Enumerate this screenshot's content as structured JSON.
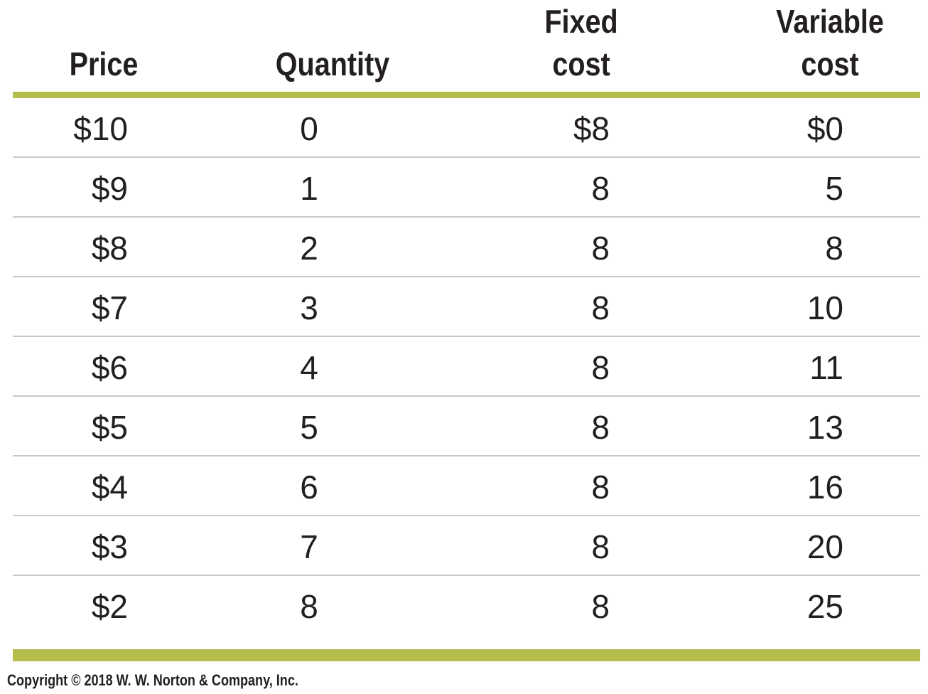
{
  "table": {
    "headers": {
      "price": [
        "Price"
      ],
      "quantity": [
        "Quantity"
      ],
      "fixed_cost": [
        "Fixed",
        "cost"
      ],
      "variable_cost": [
        "Variable",
        "cost"
      ]
    },
    "rows": [
      {
        "price": "$10",
        "quantity": "0",
        "fixed_cost": "$8",
        "variable_cost": "$0"
      },
      {
        "price": "$9",
        "quantity": "1",
        "fixed_cost": "8",
        "variable_cost": "5"
      },
      {
        "price": "$8",
        "quantity": "2",
        "fixed_cost": "8",
        "variable_cost": "8"
      },
      {
        "price": "$7",
        "quantity": "3",
        "fixed_cost": "8",
        "variable_cost": "10"
      },
      {
        "price": "$6",
        "quantity": "4",
        "fixed_cost": "8",
        "variable_cost": "11"
      },
      {
        "price": "$5",
        "quantity": "5",
        "fixed_cost": "8",
        "variable_cost": "13"
      },
      {
        "price": "$4",
        "quantity": "6",
        "fixed_cost": "8",
        "variable_cost": "16"
      },
      {
        "price": "$3",
        "quantity": "7",
        "fixed_cost": "8",
        "variable_cost": "20"
      },
      {
        "price": "$2",
        "quantity": "8",
        "fixed_cost": "8",
        "variable_cost": "25"
      }
    ]
  },
  "footer": {
    "copyright": "Copyright © 2018 W. W. Norton & Company, Inc."
  },
  "colors": {
    "accent_rule": "#b5bd4c",
    "row_divider": "#c9c9c9",
    "text": "#231f20"
  }
}
